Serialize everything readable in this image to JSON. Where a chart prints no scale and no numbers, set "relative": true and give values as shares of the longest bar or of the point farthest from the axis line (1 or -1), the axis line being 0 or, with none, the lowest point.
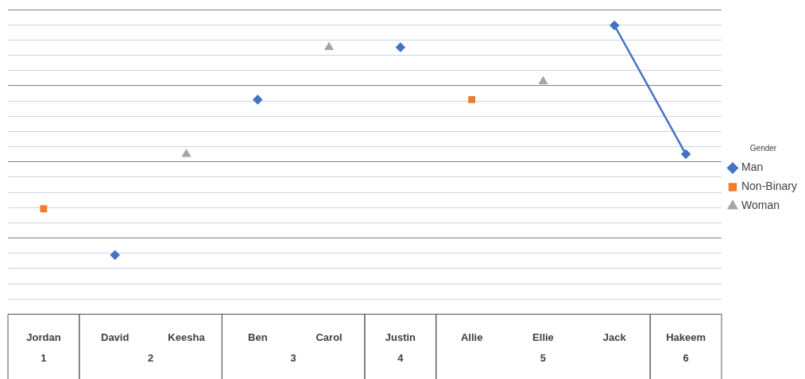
{
  "chart_data": {
    "type": "line",
    "relative": true,
    "categories": [
      "Jordan",
      "David",
      "Keesha",
      "Ben",
      "Carol",
      "Justin",
      "Allie",
      "Ellie",
      "Jack",
      "Hakeem"
    ],
    "series": [
      {
        "name": "Man",
        "color": "#4472c4",
        "marker": "diamond",
        "values": [
          null,
          0.205,
          null,
          0.743,
          null,
          0.924,
          null,
          null,
          1,
          0.554
        ]
      },
      {
        "name": "Non-Binary",
        "type": "scatter",
        "color": "#ed7d31",
        "marker": "square",
        "values": [
          0.365,
          null,
          null,
          null,
          null,
          null,
          0.743,
          null,
          null,
          null
        ]
      },
      {
        "name": "Woman",
        "type": "scatter",
        "color": "#a5a5a5",
        "marker": "triangle",
        "values": [
          null,
          null,
          0.554,
          null,
          0.924,
          null,
          null,
          0.806,
          null,
          null
        ]
      }
    ],
    "annotations": [
      "1",
      "2",
      "3",
      "4",
      "5",
      "6"
    ],
    "legend": "right",
    "legend_title": "Gender",
    "grid": true
  }
}
